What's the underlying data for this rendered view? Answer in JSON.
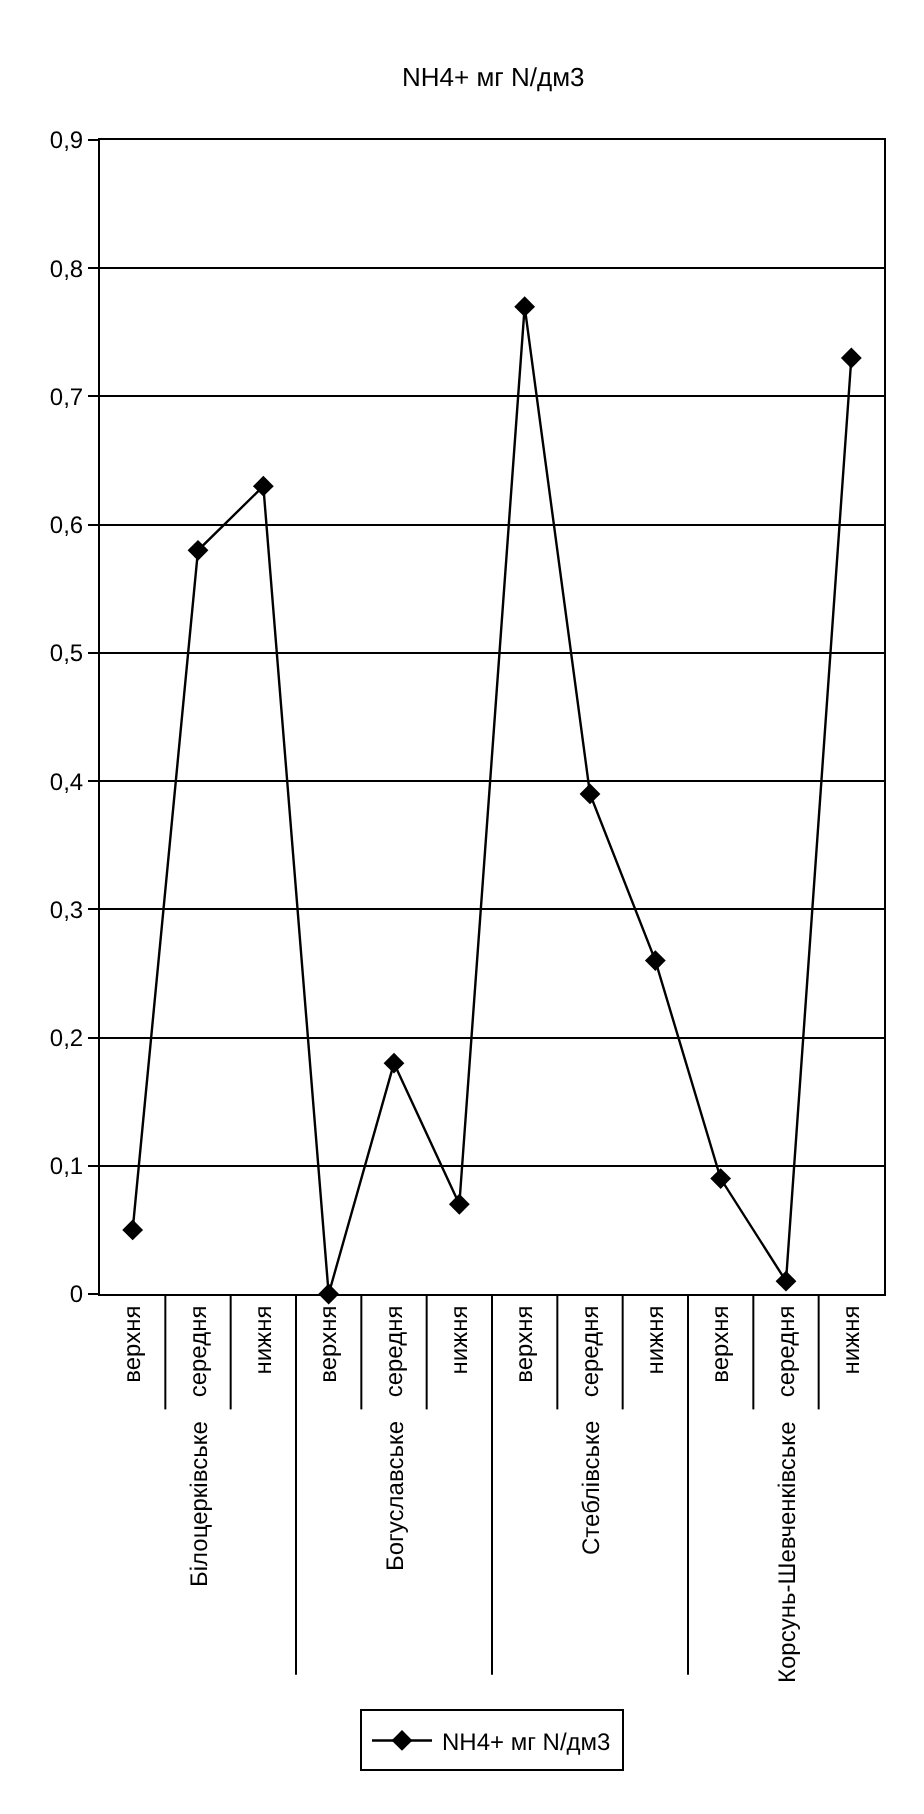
{
  "chart_data": {
    "type": "line",
    "title": "NH4+ мг N/дм3",
    "categories": [
      "верхня",
      "середня",
      "нижня",
      "верхня",
      "середня",
      "нижня",
      "верхня",
      "середня",
      "нижня",
      "верхня",
      "середня",
      "нижня"
    ],
    "series": [
      {
        "name": "NH4+ мг N/дм3",
        "color": "#000000",
        "values": [
          0.05,
          0.58,
          0.63,
          0.0,
          0.18,
          0.07,
          0.77,
          0.39,
          0.26,
          0.09,
          0.01,
          0.73
        ]
      }
    ],
    "annotations": [
      "Білоцерківське",
      "Богуславське",
      "Стеблівське",
      "Корсунь-Шевченківське"
    ],
    "ylim": [
      0,
      0.9
    ],
    "yticks": [
      0,
      {
        "value": 0.1,
        "label": "0,1"
      },
      {
        "value": 0.2,
        "label": "0,2"
      },
      {
        "value": 0.3,
        "label": "0,3"
      },
      {
        "value": 0.4,
        "label": "0,4"
      },
      {
        "value": 0.5,
        "label": "0,5"
      },
      {
        "value": 0.6,
        "label": "0,6"
      },
      {
        "value": 0.7,
        "label": "0,7"
      },
      {
        "value": 0.8,
        "label": "0,8"
      },
      {
        "value": 0.9,
        "label": "0,9"
      }
    ],
    "grid": true,
    "legend": "bottom",
    "marker": "diamond",
    "line_style": "solid"
  }
}
